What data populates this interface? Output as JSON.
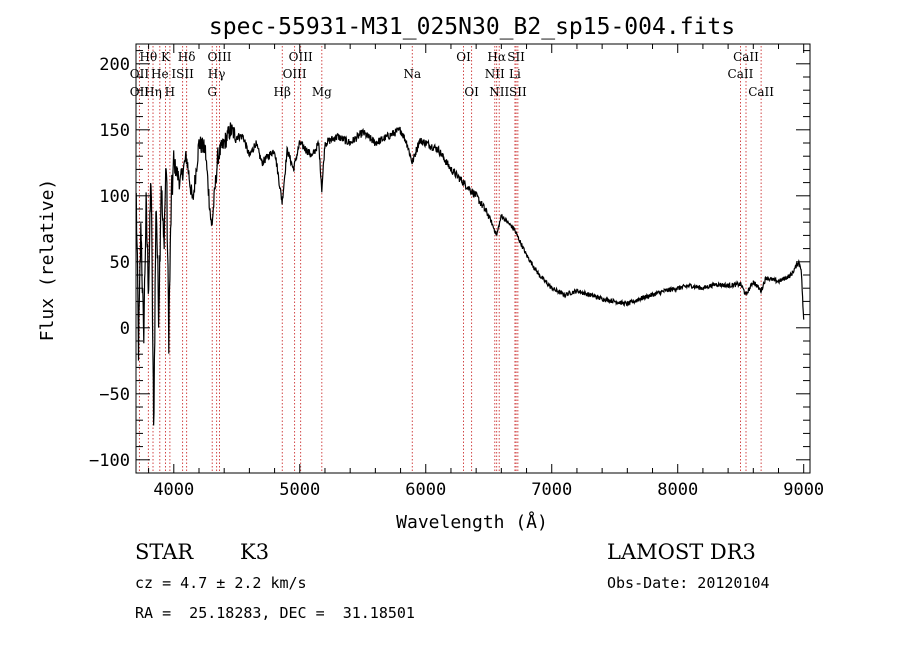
{
  "chart_data": {
    "type": "line",
    "title": "spec-55931-M31_025N30_B2_sp15-004.fits",
    "xlabel": "Wavelength (Å)",
    "ylabel": "Flux (relative)",
    "xlim": [
      3700,
      9050
    ],
    "ylim": [
      -110,
      215
    ],
    "x_ticks": [
      4000,
      5000,
      6000,
      7000,
      8000,
      9000
    ],
    "y_ticks": [
      -100,
      -50,
      0,
      50,
      100,
      150,
      200
    ],
    "y_tick_labels": [
      "−100",
      "−50",
      "0",
      "50",
      "100",
      "150",
      "200"
    ],
    "grid": false,
    "series": [
      {
        "name": "spectrum",
        "x": [
          3700,
          3720,
          3740,
          3760,
          3780,
          3800,
          3820,
          3840,
          3860,
          3880,
          3900,
          3920,
          3940,
          3960,
          3980,
          4000,
          4050,
          4100,
          4150,
          4200,
          4250,
          4300,
          4350,
          4400,
          4450,
          4500,
          4550,
          4600,
          4650,
          4700,
          4750,
          4800,
          4860,
          4900,
          4950,
          5000,
          5050,
          5100,
          5150,
          5175,
          5200,
          5300,
          5400,
          5500,
          5600,
          5700,
          5800,
          5850,
          5893,
          5950,
          6000,
          6100,
          6200,
          6300,
          6400,
          6500,
          6563,
          6600,
          6700,
          6800,
          6900,
          7000,
          7100,
          7200,
          7300,
          7400,
          7500,
          7600,
          7700,
          7800,
          7900,
          8000,
          8100,
          8200,
          8300,
          8400,
          8500,
          8542,
          8600,
          8662,
          8700,
          8800,
          8900,
          8960,
          8980,
          9000
        ],
        "y": [
          110,
          -15,
          80,
          -10,
          90,
          30,
          120,
          -80,
          100,
          10,
          110,
          60,
          130,
          -5,
          95,
          125,
          110,
          130,
          95,
          140,
          135,
          75,
          130,
          140,
          150,
          145,
          145,
          130,
          140,
          125,
          130,
          135,
          95,
          135,
          120,
          140,
          135,
          130,
          140,
          105,
          140,
          145,
          140,
          148,
          140,
          145,
          150,
          140,
          125,
          142,
          140,
          135,
          120,
          110,
          100,
          85,
          70,
          85,
          75,
          55,
          40,
          30,
          25,
          28,
          25,
          22,
          20,
          18,
          22,
          25,
          28,
          30,
          32,
          30,
          33,
          32,
          33,
          25,
          35,
          28,
          38,
          35,
          40,
          50,
          45,
          5
        ]
      }
    ],
    "line_labels": [
      {
        "text": "Hθ",
        "row": 1,
        "wavelength": 3798
      },
      {
        "text": "Hη",
        "row": 3,
        "wavelength": 3835
      },
      {
        "text": "OII",
        "row": 2,
        "wavelength": 3727
      },
      {
        "text": "OII",
        "row": 3,
        "wavelength": 3727
      },
      {
        "text": "He",
        "row": 2,
        "wavelength": 3889
      },
      {
        "text": "K",
        "row": 1,
        "wavelength": 3934
      },
      {
        "text": "H",
        "row": 3,
        "wavelength": 3969
      },
      {
        "text": "Hδ",
        "row": 1,
        "wavelength": 4102
      },
      {
        "text": "ISII",
        "row": 2,
        "wavelength": 4070
      },
      {
        "text": "OIII",
        "row": 1,
        "wavelength": 4363
      },
      {
        "text": "Hγ",
        "row": 2,
        "wavelength": 4340
      },
      {
        "text": "G",
        "row": 3,
        "wavelength": 4305
      },
      {
        "text": "Hβ",
        "row": 3,
        "wavelength": 4861
      },
      {
        "text": "OIII",
        "row": 1,
        "wavelength": 5007
      },
      {
        "text": "OIII",
        "row": 2,
        "wavelength": 4959
      },
      {
        "text": "Mg",
        "row": 3,
        "wavelength": 5175
      },
      {
        "text": "Na",
        "row": 2,
        "wavelength": 5893
      },
      {
        "text": "OI",
        "row": 1,
        "wavelength": 6300
      },
      {
        "text": "OI",
        "row": 3,
        "wavelength": 6364
      },
      {
        "text": "Hα",
        "row": 1,
        "wavelength": 6563
      },
      {
        "text": "NII",
        "row": 2,
        "wavelength": 6548
      },
      {
        "text": "NII",
        "row": 3,
        "wavelength": 6583
      },
      {
        "text": "SII",
        "row": 1,
        "wavelength": 6717
      },
      {
        "text": "Li",
        "row": 2,
        "wavelength": 6708
      },
      {
        "text": "SII",
        "row": 3,
        "wavelength": 6731
      },
      {
        "text": "CaII",
        "row": 1,
        "wavelength": 8542
      },
      {
        "text": "CaII",
        "row": 2,
        "wavelength": 8498
      },
      {
        "text": "CaII",
        "row": 3,
        "wavelength": 8662
      }
    ],
    "line_markers": [
      3727,
      3798,
      3835,
      3889,
      3934,
      3969,
      4070,
      4102,
      4305,
      4340,
      4363,
      4861,
      4959,
      5007,
      5175,
      5893,
      6300,
      6364,
      6548,
      6563,
      6583,
      6708,
      6717,
      6731,
      8498,
      8542,
      8662
    ],
    "colors": {
      "spectrum": "#000000",
      "markers": "#cc3333",
      "frame": "#000000"
    }
  },
  "info": {
    "object_class": "STAR",
    "subclass": "K3",
    "survey": "LAMOST DR3",
    "cz": "cz = 4.7 ± 2.2 km/s",
    "obs_date": "Obs-Date: 20120104",
    "coords": "RA =  25.18283, DEC =  31.18501"
  }
}
